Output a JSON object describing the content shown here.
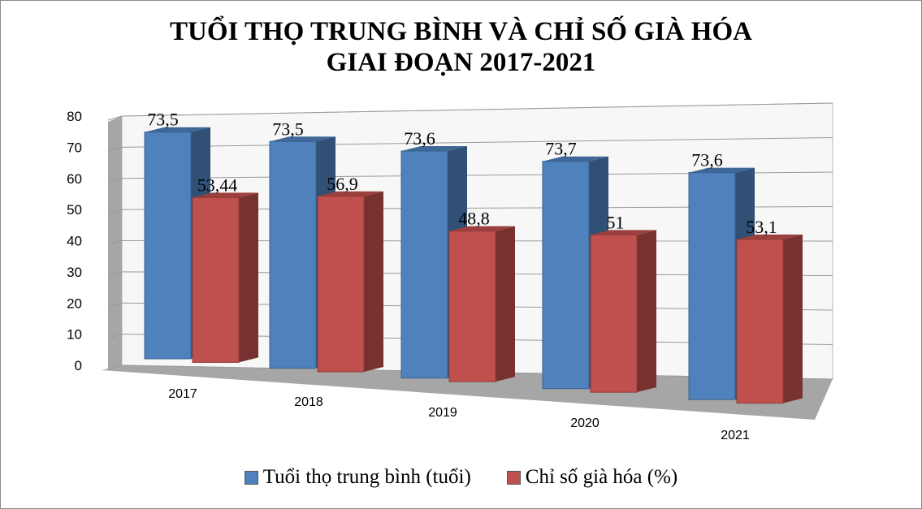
{
  "chart_data": {
    "type": "bar",
    "title_line1": "TUỔI THỌ TRUNG BÌNH VÀ CHỈ SỐ GIÀ HÓA",
    "title_line2": "GIAI ĐOẠN 2017-2021",
    "categories": [
      "2017",
      "2018",
      "2019",
      "2020",
      "2021"
    ],
    "series": [
      {
        "name": "Tuổi thọ trung bình (tuổi)",
        "values": [
          73.5,
          73.5,
          73.6,
          73.7,
          73.6
        ],
        "labels": [
          "73,5",
          "73,5",
          "73,6",
          "73,7",
          "73,6"
        ],
        "color": "#4f81bd"
      },
      {
        "name": "Chỉ số già hóa (%)",
        "values": [
          53.44,
          56.9,
          48.8,
          51,
          53.1
        ],
        "labels": [
          "53,44",
          "56,9",
          "48,8",
          "51",
          "53,1"
        ],
        "color": "#c0504d"
      }
    ],
    "ylim": [
      0,
      80
    ],
    "yticks": [
      "0",
      "10",
      "20",
      "30",
      "40",
      "50",
      "60",
      "70",
      "80"
    ],
    "grid": true,
    "style": "3d-clustered-column",
    "legend_position": "bottom"
  }
}
